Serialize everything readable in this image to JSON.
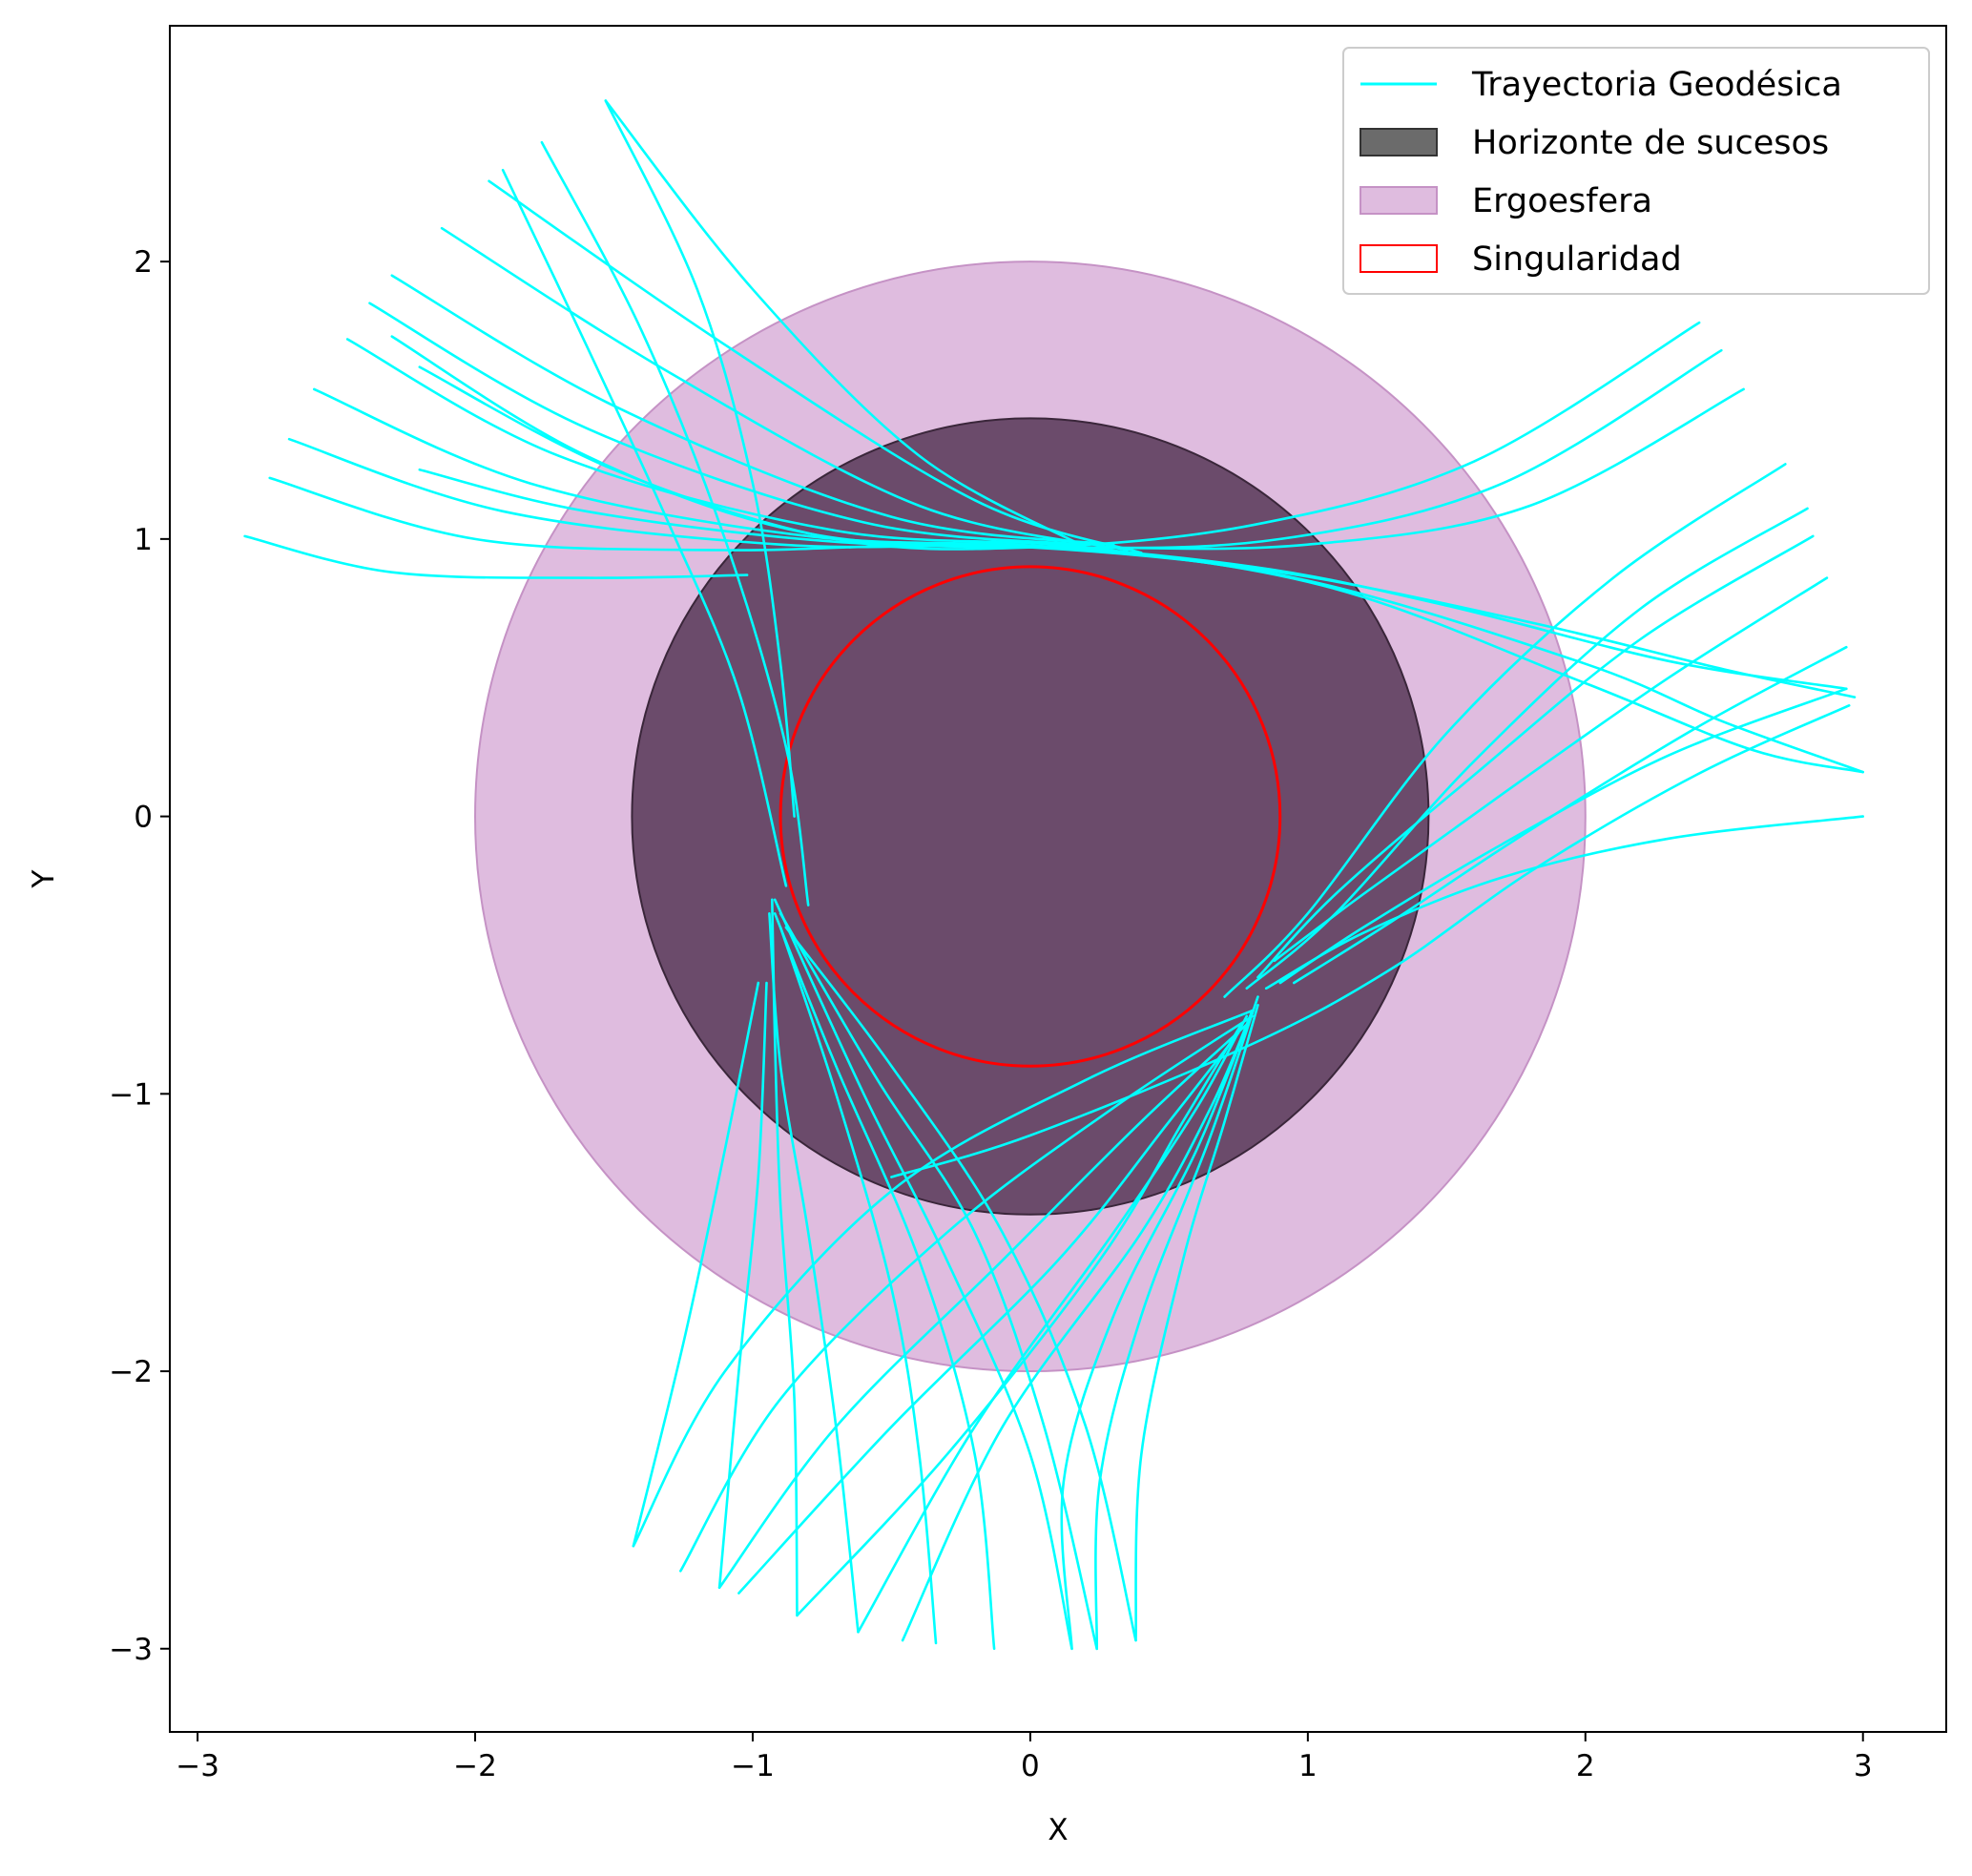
{
  "chart_data": {
    "type": "line",
    "xlabel": "X",
    "ylabel": "Y",
    "xlim": [
      -3.1,
      3.3
    ],
    "ylim": [
      -3.3,
      2.85
    ],
    "xticks": [
      -3,
      -2,
      -1,
      0,
      1,
      2,
      3
    ],
    "yticks": [
      -3,
      -2,
      -1,
      0,
      1,
      2
    ],
    "grid": false,
    "legend_position": "upper-right",
    "aspect": "equal",
    "regions": [
      {
        "name": "Ergoesfera",
        "shape": "circle",
        "cx": 0,
        "cy": 0,
        "r": 2.0,
        "fill": "#dfbcdf",
        "stroke": "#c592c5"
      },
      {
        "name": "Horizonte de sucesos",
        "shape": "circle",
        "cx": 0,
        "cy": 0,
        "r": 1.435,
        "fill": "#6b4b6b",
        "stroke": "#3a263a"
      },
      {
        "name": "Singularidad",
        "shape": "circle",
        "cx": 0,
        "cy": 0,
        "r": 0.9,
        "fill": "none",
        "stroke": "#ff0000"
      }
    ],
    "series_style": {
      "name": "Trayectoria Geodésica",
      "color": "#00ffff"
    },
    "series": [
      {
        "points": [
          [
            -2.83,
            1.01
          ],
          [
            -2.3,
            0.88
          ],
          [
            -1.6,
            0.86
          ],
          [
            -1.02,
            0.87
          ]
        ]
      },
      {
        "points": [
          [
            -2.74,
            1.22
          ],
          [
            -2.0,
            1.0
          ],
          [
            -1.1,
            0.96
          ],
          [
            -0.1,
            0.98
          ],
          [
            0.8,
            0.9
          ],
          [
            1.5,
            0.76
          ],
          [
            2.3,
            0.56
          ],
          [
            2.94,
            0.46
          ]
        ]
      },
      {
        "points": [
          [
            -2.67,
            1.36
          ],
          [
            -1.9,
            1.1
          ],
          [
            -0.9,
            0.98
          ],
          [
            0.0,
            0.97
          ],
          [
            0.9,
            0.88
          ],
          [
            1.8,
            0.7
          ],
          [
            2.5,
            0.53
          ],
          [
            2.97,
            0.43
          ]
        ]
      },
      {
        "points": [
          [
            -2.58,
            1.54
          ],
          [
            -1.8,
            1.2
          ],
          [
            -0.8,
            1.01
          ],
          [
            0.1,
            0.97
          ],
          [
            1.0,
            0.85
          ],
          [
            2.0,
            0.55
          ],
          [
            2.5,
            0.34
          ],
          [
            3.0,
            0.16
          ]
        ]
      },
      {
        "points": [
          [
            -2.46,
            1.72
          ],
          [
            -1.7,
            1.3
          ],
          [
            -0.7,
            1.03
          ],
          [
            0.2,
            0.97
          ],
          [
            1.1,
            0.82
          ],
          [
            2.0,
            0.48
          ],
          [
            2.6,
            0.24
          ],
          [
            3.0,
            0.16
          ]
        ]
      },
      {
        "points": [
          [
            -2.38,
            1.85
          ],
          [
            -1.6,
            1.4
          ],
          [
            -0.6,
            1.06
          ],
          [
            0.2,
            0.98
          ]
        ]
      },
      {
        "points": [
          [
            -2.3,
            1.95
          ],
          [
            -1.5,
            1.48
          ],
          [
            -0.5,
            1.08
          ],
          [
            0.3,
            0.98
          ]
        ]
      },
      {
        "points": [
          [
            -2.12,
            2.12
          ],
          [
            -1.3,
            1.6
          ],
          [
            -0.4,
            1.12
          ],
          [
            0.35,
            0.96
          ]
        ]
      },
      {
        "points": [
          [
            -1.95,
            2.29
          ],
          [
            -1.1,
            1.7
          ],
          [
            -0.2,
            1.14
          ],
          [
            0.4,
            0.95
          ]
        ]
      },
      {
        "points": [
          [
            -1.9,
            2.33
          ],
          [
            -1.6,
            1.7
          ],
          [
            -1.3,
            1.05
          ],
          [
            -1.05,
            0.45
          ],
          [
            -0.88,
            -0.25
          ]
        ]
      },
      {
        "points": [
          [
            -1.76,
            2.43
          ],
          [
            -1.4,
            1.75
          ],
          [
            -1.1,
            1.0
          ],
          [
            -0.88,
            0.25
          ],
          [
            -0.8,
            -0.32
          ]
        ]
      },
      {
        "points": [
          [
            -1.53,
            2.58
          ],
          [
            -1.2,
            1.9
          ],
          [
            -1.0,
            1.2
          ],
          [
            -0.9,
            0.55
          ],
          [
            -0.85,
            0.0
          ]
        ]
      },
      {
        "points": [
          [
            -1.53,
            2.58
          ],
          [
            -1.0,
            1.9
          ],
          [
            -0.4,
            1.3
          ],
          [
            0.2,
            0.97
          ]
        ]
      },
      {
        "points": [
          [
            2.41,
            1.78
          ],
          [
            1.6,
            1.28
          ],
          [
            0.8,
            1.05
          ],
          [
            0.0,
            0.97
          ],
          [
            -0.7,
            1.0
          ],
          [
            -1.5,
            1.25
          ],
          [
            -2.2,
            1.62
          ]
        ]
      },
      {
        "points": [
          [
            2.49,
            1.68
          ],
          [
            1.7,
            1.2
          ],
          [
            0.9,
            1.0
          ],
          [
            0.1,
            0.97
          ],
          [
            -0.8,
            1.02
          ],
          [
            -1.6,
            1.3
          ],
          [
            -2.3,
            1.73
          ]
        ]
      },
      {
        "points": [
          [
            2.57,
            1.54
          ],
          [
            1.8,
            1.12
          ],
          [
            1.0,
            0.98
          ],
          [
            0.2,
            0.97
          ],
          [
            -0.7,
            0.99
          ],
          [
            -1.6,
            1.1
          ],
          [
            -2.2,
            1.25
          ]
        ]
      },
      {
        "points": [
          [
            2.72,
            1.27
          ],
          [
            2.1,
            0.86
          ],
          [
            1.5,
            0.3
          ],
          [
            1.0,
            -0.35
          ],
          [
            0.7,
            -0.65
          ]
        ]
      },
      {
        "points": [
          [
            2.8,
            1.11
          ],
          [
            2.2,
            0.75
          ],
          [
            1.6,
            0.2
          ],
          [
            1.1,
            -0.35
          ],
          [
            0.78,
            -0.62
          ]
        ]
      },
      {
        "points": [
          [
            2.82,
            1.01
          ],
          [
            2.2,
            0.64
          ],
          [
            1.6,
            0.15
          ],
          [
            1.1,
            -0.28
          ],
          [
            0.82,
            -0.58
          ]
        ]
      },
      {
        "points": [
          [
            2.87,
            0.86
          ],
          [
            2.3,
            0.5
          ],
          [
            1.7,
            0.08
          ],
          [
            1.2,
            -0.28
          ],
          [
            0.88,
            -0.52
          ]
        ]
      },
      {
        "points": [
          [
            2.94,
            0.61
          ],
          [
            2.4,
            0.32
          ],
          [
            1.8,
            -0.05
          ],
          [
            1.3,
            -0.38
          ],
          [
            0.95,
            -0.6
          ]
        ]
      },
      {
        "points": [
          [
            2.94,
            0.46
          ],
          [
            2.3,
            0.22
          ],
          [
            1.7,
            -0.1
          ],
          [
            1.2,
            -0.4
          ],
          [
            0.9,
            -0.6
          ]
        ]
      },
      {
        "points": [
          [
            3.0,
            0.0
          ],
          [
            2.3,
            -0.08
          ],
          [
            1.7,
            -0.22
          ],
          [
            1.2,
            -0.42
          ],
          [
            0.85,
            -0.62
          ]
        ]
      },
      {
        "points": [
          [
            2.95,
            0.4
          ],
          [
            2.4,
            0.15
          ],
          [
            1.8,
            -0.2
          ],
          [
            1.3,
            -0.55
          ],
          [
            0.8,
            -0.82
          ],
          [
            0.0,
            -1.15
          ],
          [
            -0.5,
            -1.3
          ]
        ]
      },
      {
        "points": [
          [
            -1.43,
            -2.63
          ],
          [
            -1.1,
            -2.0
          ],
          [
            -0.5,
            -1.35
          ],
          [
            0.2,
            -0.95
          ],
          [
            0.8,
            -0.7
          ]
        ]
      },
      {
        "points": [
          [
            -1.26,
            -2.72
          ],
          [
            -0.9,
            -2.1
          ],
          [
            -0.3,
            -1.5
          ],
          [
            0.3,
            -1.05
          ],
          [
            0.8,
            -0.72
          ]
        ]
      },
      {
        "points": [
          [
            -1.12,
            -2.78
          ],
          [
            -0.7,
            -2.2
          ],
          [
            -0.1,
            -1.6
          ],
          [
            0.4,
            -1.1
          ],
          [
            0.78,
            -0.75
          ]
        ]
      },
      {
        "points": [
          [
            -1.05,
            -2.8
          ],
          [
            -0.5,
            -2.2
          ],
          [
            0.1,
            -1.6
          ],
          [
            0.5,
            -1.1
          ],
          [
            0.75,
            -0.78
          ]
        ]
      },
      {
        "points": [
          [
            -0.84,
            -2.88
          ],
          [
            -0.3,
            -2.3
          ],
          [
            0.25,
            -1.6
          ],
          [
            0.55,
            -1.1
          ],
          [
            0.76,
            -0.75
          ]
        ]
      },
      {
        "points": [
          [
            -0.62,
            -2.94
          ],
          [
            -0.2,
            -2.2
          ],
          [
            0.3,
            -1.5
          ],
          [
            0.6,
            -1.05
          ],
          [
            0.78,
            -0.72
          ]
        ]
      },
      {
        "points": [
          [
            -0.46,
            -2.97
          ],
          [
            -0.1,
            -2.2
          ],
          [
            0.4,
            -1.5
          ],
          [
            0.65,
            -1.05
          ],
          [
            0.8,
            -0.7
          ]
        ]
      },
      {
        "points": [
          [
            0.15,
            -3.0
          ],
          [
            0.12,
            -2.4
          ],
          [
            0.3,
            -1.8
          ],
          [
            0.6,
            -1.2
          ],
          [
            0.8,
            -0.7
          ]
        ]
      },
      {
        "points": [
          [
            0.24,
            -3.0
          ],
          [
            0.25,
            -2.4
          ],
          [
            0.4,
            -1.8
          ],
          [
            0.65,
            -1.15
          ],
          [
            0.82,
            -0.65
          ]
        ]
      },
      {
        "points": [
          [
            0.38,
            -2.97
          ],
          [
            0.4,
            -2.3
          ],
          [
            0.55,
            -1.6
          ],
          [
            0.7,
            -1.1
          ],
          [
            0.82,
            -0.68
          ]
        ]
      },
      {
        "points": [
          [
            -0.34,
            -2.98
          ],
          [
            -0.4,
            -2.3
          ],
          [
            -0.5,
            -1.7
          ],
          [
            -0.7,
            -1.0
          ],
          [
            -0.9,
            -0.4
          ]
        ]
      },
      {
        "points": [
          [
            -0.13,
            -3.0
          ],
          [
            -0.2,
            -2.3
          ],
          [
            -0.4,
            -1.6
          ],
          [
            -0.7,
            -0.9
          ],
          [
            -0.92,
            -0.35
          ]
        ]
      },
      {
        "points": [
          [
            0.15,
            -3.0
          ],
          [
            0.0,
            -2.3
          ],
          [
            -0.3,
            -1.6
          ],
          [
            -0.6,
            -1.0
          ],
          [
            -0.92,
            -0.3
          ]
        ]
      },
      {
        "points": [
          [
            0.24,
            -3.0
          ],
          [
            0.05,
            -2.2
          ],
          [
            -0.2,
            -1.5
          ],
          [
            -0.55,
            -0.95
          ],
          [
            -0.9,
            -0.35
          ]
        ]
      },
      {
        "points": [
          [
            0.38,
            -2.97
          ],
          [
            0.2,
            -2.2
          ],
          [
            -0.1,
            -1.5
          ],
          [
            -0.5,
            -0.9
          ],
          [
            -0.88,
            -0.4
          ]
        ]
      },
      {
        "points": [
          [
            -0.84,
            -2.88
          ],
          [
            -0.85,
            -2.1
          ],
          [
            -0.9,
            -1.4
          ],
          [
            -0.92,
            -0.8
          ],
          [
            -0.93,
            -0.3
          ]
        ]
      },
      {
        "points": [
          [
            -0.62,
            -2.94
          ],
          [
            -0.7,
            -2.2
          ],
          [
            -0.8,
            -1.5
          ],
          [
            -0.9,
            -0.9
          ],
          [
            -0.94,
            -0.35
          ]
        ]
      },
      {
        "points": [
          [
            -1.43,
            -2.63
          ],
          [
            -1.25,
            -1.9
          ],
          [
            -1.1,
            -1.2
          ],
          [
            -0.98,
            -0.6
          ]
        ]
      },
      {
        "points": [
          [
            -1.12,
            -2.78
          ],
          [
            -1.05,
            -2.0
          ],
          [
            -0.98,
            -1.3
          ],
          [
            -0.95,
            -0.6
          ]
        ]
      }
    ],
    "legend": [
      {
        "label": "Trayectoria Geodésica",
        "kind": "line",
        "color": "#00ffff"
      },
      {
        "label": "Horizonte de sucesos",
        "kind": "patch",
        "fill": "#6b6b6b",
        "stroke": "#333333"
      },
      {
        "label": "Ergoesfera",
        "kind": "patch",
        "fill": "#dfbcdf",
        "stroke": "#c592c5"
      },
      {
        "label": "Singularidad",
        "kind": "patch",
        "fill": "#ffffff",
        "stroke": "#ff0000"
      }
    ]
  }
}
